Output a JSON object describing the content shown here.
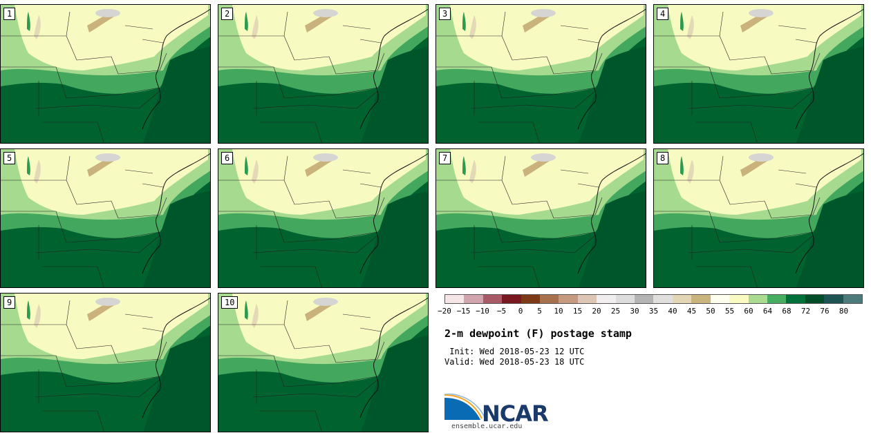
{
  "members": [
    "1",
    "2",
    "3",
    "4",
    "5",
    "6",
    "7",
    "8",
    "9",
    "10"
  ],
  "colorbar": {
    "colors": [
      "#f6e6e8",
      "#d2a4ad",
      "#a85a66",
      "#7a1822",
      "#7d3a17",
      "#a8714e",
      "#c59a80",
      "#dec6b6",
      "#f1eef0",
      "#dedddd",
      "#b5b4b4",
      "#e0dfdd",
      "#e2d6b5",
      "#c8b47c",
      "#fffff0",
      "#f9fbc3",
      "#aadb90",
      "#47ad61",
      "#00703a",
      "#004d2a",
      "#1f5455",
      "#4d7a7b"
    ],
    "ticks": [
      "−20",
      "−15",
      "−10",
      "−5",
      "0",
      "5",
      "10",
      "15",
      "20",
      "25",
      "30",
      "35",
      "40",
      "45",
      "50",
      "55",
      "60",
      "64",
      "68",
      "72",
      "76",
      "80"
    ]
  },
  "title": "2-m dewpoint (F) postage stamp",
  "init": " Init: Wed 2018-05-23 12 UTC",
  "valid": "Valid: Wed 2018-05-23 18 UTC",
  "logo": {
    "name": "NCAR",
    "website": "ensemble.ucar.edu"
  }
}
